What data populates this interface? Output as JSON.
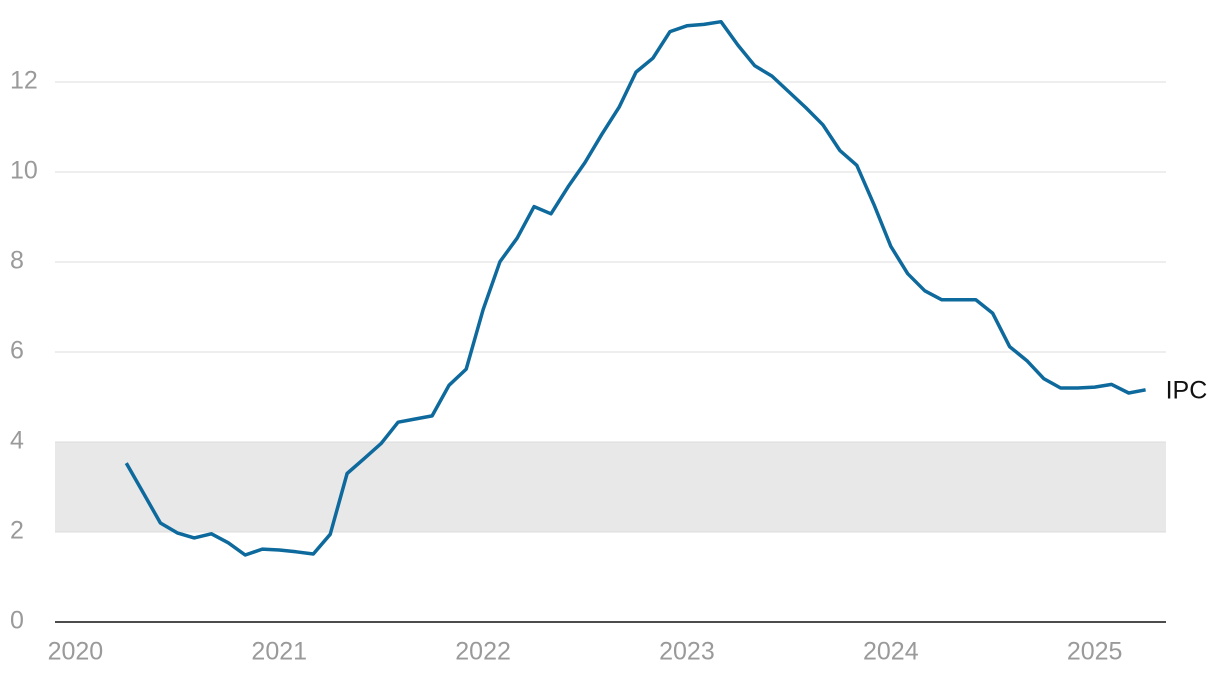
{
  "chart_data": {
    "type": "line",
    "x": [
      2020.25,
      2020.333,
      2020.417,
      2020.5,
      2020.583,
      2020.667,
      2020.75,
      2020.833,
      2020.917,
      2021,
      2021.083,
      2021.167,
      2021.25,
      2021.333,
      2021.417,
      2021.5,
      2021.583,
      2021.667,
      2021.75,
      2021.833,
      2021.917,
      2022,
      2022.083,
      2022.167,
      2022.25,
      2022.333,
      2022.417,
      2022.5,
      2022.583,
      2022.667,
      2022.75,
      2022.833,
      2022.917,
      2023,
      2023.083,
      2023.167,
      2023.25,
      2023.333,
      2023.417,
      2023.5,
      2023.583,
      2023.667,
      2023.75,
      2023.833,
      2023.917,
      2024,
      2024.083,
      2024.167,
      2024.25,
      2024.333,
      2024.417,
      2024.5,
      2024.583,
      2024.667,
      2024.75,
      2024.833,
      2024.917,
      2025,
      2025.083,
      2025.167,
      2025.25
    ],
    "series": [
      {
        "name": "IPC",
        "color": "#0e6a9c",
        "values": [
          3.53,
          2.87,
          2.2,
          1.98,
          1.87,
          1.96,
          1.76,
          1.49,
          1.62,
          1.6,
          1.56,
          1.51,
          1.95,
          3.3,
          3.63,
          3.97,
          4.44,
          4.51,
          4.58,
          5.26,
          5.62,
          6.94,
          8.01,
          8.53,
          9.23,
          9.07,
          9.67,
          10.21,
          10.84,
          11.44,
          12.22,
          12.53,
          13.12,
          13.25,
          13.28,
          13.34,
          12.82,
          12.36,
          12.13,
          11.78,
          11.43,
          11.05,
          10.48,
          10.15,
          9.28,
          8.35,
          7.74,
          7.36,
          7.16,
          7.16,
          7.16,
          6.86,
          6.12,
          5.81,
          5.41,
          5.2,
          5.2,
          5.22,
          5.28,
          5.09,
          5.16
        ]
      }
    ],
    "band": [
      2,
      4
    ],
    "band_color": "#e8e8e8",
    "xlim": [
      2019.9,
      2025.35
    ],
    "xticks": [
      2020,
      2021,
      2022,
      2023,
      2024,
      2025
    ],
    "ylim": [
      0,
      13.5
    ],
    "yticks": [
      0,
      2,
      4,
      6,
      8,
      10,
      12
    ],
    "grid": true
  }
}
